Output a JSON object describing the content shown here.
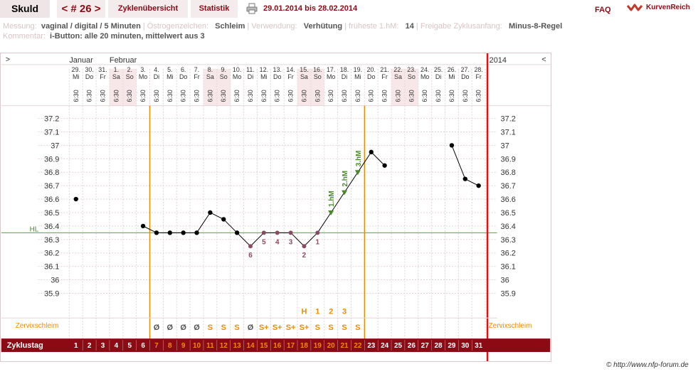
{
  "header": {
    "name": "Skuld",
    "cycle": "< # 26 >",
    "tabs": [
      "Zyklenübersicht",
      "Statistik"
    ],
    "date_range": "29.01.2014 bis 28.02.2014",
    "faq": "FAQ",
    "logo_text": "KurvenReich"
  },
  "info": {
    "messung_label": "Messung:",
    "messung_value": "vaginal / digital / 5 Minuten",
    "oestrogen_label": "Östrogenzeichen:",
    "oestrogen_value": "Schleim",
    "verwendung_label": "Verwendung:",
    "verwendung_value": "Verhütung",
    "hm_label": "früheste 1.hM:",
    "hm_value": "14",
    "freigabe_label": "Freigabe Zyklusanfang:",
    "freigabe_value": "Minus-8-Regel",
    "kommentar_label": "Kommentar:",
    "kommentar_value": "i-Button: alle 20 minuten, mittelwert aus 3"
  },
  "chart": {
    "nav_left": ">",
    "nav_right": "<",
    "year_right": "2014",
    "month_labels": [
      {
        "day_index": 0,
        "text": "Januar"
      },
      {
        "day_index": 3,
        "text": "Februar"
      }
    ],
    "days": [
      {
        "date": "29.",
        "wd": "Mi"
      },
      {
        "date": "30.",
        "wd": "Do"
      },
      {
        "date": "31.",
        "wd": "Fr"
      },
      {
        "date": "1.",
        "wd": "Sa"
      },
      {
        "date": "2.",
        "wd": "So"
      },
      {
        "date": "3.",
        "wd": "Mo"
      },
      {
        "date": "4.",
        "wd": "Di"
      },
      {
        "date": "5.",
        "wd": "Mi"
      },
      {
        "date": "6.",
        "wd": "Do"
      },
      {
        "date": "7.",
        "wd": "Fr"
      },
      {
        "date": "8.",
        "wd": "Sa"
      },
      {
        "date": "9.",
        "wd": "So"
      },
      {
        "date": "10.",
        "wd": "Mo"
      },
      {
        "date": "11.",
        "wd": "Di"
      },
      {
        "date": "12.",
        "wd": "Mi"
      },
      {
        "date": "13.",
        "wd": "Do"
      },
      {
        "date": "14.",
        "wd": "Fr"
      },
      {
        "date": "15.",
        "wd": "Sa"
      },
      {
        "date": "16.",
        "wd": "So"
      },
      {
        "date": "17.",
        "wd": "Mo"
      },
      {
        "date": "18.",
        "wd": "Di"
      },
      {
        "date": "19.",
        "wd": "Mi"
      },
      {
        "date": "20.",
        "wd": "Do"
      },
      {
        "date": "21.",
        "wd": "Fr"
      },
      {
        "date": "22.",
        "wd": "Sa"
      },
      {
        "date": "23.",
        "wd": "So"
      },
      {
        "date": "24.",
        "wd": "Mo"
      },
      {
        "date": "25.",
        "wd": "Di"
      },
      {
        "date": "26.",
        "wd": "Mi"
      },
      {
        "date": "27.",
        "wd": "Do"
      },
      {
        "date": "28.",
        "wd": "Fr"
      }
    ],
    "time": "6:30",
    "shaded_day_indices": [
      3,
      4,
      10,
      11,
      17,
      18,
      24,
      25
    ],
    "y_ticks": [
      "37.2",
      "37.1",
      "37",
      "36.9",
      "36.8",
      "36.7",
      "36.6",
      "36.5",
      "36.4",
      "36.3",
      "36.2",
      "36.1",
      "36",
      "35.9"
    ],
    "hl_label": "HL",
    "cervix_label": "Zervixschleim",
    "cycle_label": "Zyklustag",
    "cycle_days": [
      "1",
      "2",
      "3",
      "4",
      "5",
      "6",
      "7",
      "8",
      "9",
      "10",
      "11",
      "12",
      "13",
      "14",
      "15",
      "16",
      "17",
      "18",
      "19",
      "20",
      "21",
      "22",
      "23",
      "24",
      "25",
      "26",
      "27",
      "28",
      "29",
      "30",
      "31"
    ],
    "cervix_top_marks": [
      {
        "day_index": 17,
        "text": "H"
      },
      {
        "day_index": 18,
        "text": "1"
      },
      {
        "day_index": 19,
        "text": "2"
      },
      {
        "day_index": 20,
        "text": "3"
      }
    ],
    "cervix_codes": [
      "",
      "",
      "",
      "",
      "",
      "",
      "Ø",
      "Ø",
      "Ø",
      "Ø",
      "S",
      "S",
      "S",
      "Ø",
      "S+",
      "S+",
      "S+",
      "S+",
      "S",
      "S",
      "S",
      "S",
      "",
      "",
      "",
      "",
      "",
      "",
      "",
      "",
      ""
    ]
  },
  "chart_data": {
    "type": "line",
    "x": [
      "29.",
      "30.",
      "31.",
      "1.",
      "2.",
      "3.",
      "4.",
      "5.",
      "6.",
      "7.",
      "8.",
      "9.",
      "10.",
      "11.",
      "12.",
      "13.",
      "14.",
      "15.",
      "16.",
      "17.",
      "18.",
      "19.",
      "20.",
      "21.",
      "22.",
      "23.",
      "24.",
      "25.",
      "26.",
      "27.",
      "28."
    ],
    "temps": [
      36.6,
      null,
      null,
      null,
      null,
      36.4,
      36.35,
      36.35,
      36.35,
      36.35,
      36.5,
      36.45,
      36.35,
      36.25,
      36.35,
      36.35,
      36.35,
      36.25,
      36.35,
      36.5,
      36.65,
      36.8,
      36.95,
      36.85,
      null,
      null,
      null,
      null,
      37.0,
      36.75,
      36.7
    ],
    "ylim": [
      35.8,
      37.3
    ],
    "hl": 36.35,
    "low_counts": [
      {
        "day_index": 13,
        "text": "6"
      },
      {
        "day_index": 14,
        "text": "5"
      },
      {
        "day_index": 15,
        "text": "4"
      },
      {
        "day_index": 16,
        "text": "3"
      },
      {
        "day_index": 17,
        "text": "2"
      },
      {
        "day_index": 18,
        "text": "1"
      }
    ],
    "high_marks": [
      {
        "day_index": 19,
        "text": "1.hM"
      },
      {
        "day_index": 20,
        "text": "2.hM"
      },
      {
        "day_index": 21,
        "text": "3.hM"
      }
    ],
    "orange_lines_day_boundary": [
      5,
      21
    ],
    "red_line_after_day": 30
  },
  "colors": {
    "brand": "#8b0a14",
    "orange": "#f08a00",
    "green": "#4a8a2a",
    "hl_line": "#5aa03a",
    "low_marker": "#8a4a60",
    "shade": "#f7e7e8"
  },
  "credit": "© http://www.nfp-forum.de"
}
